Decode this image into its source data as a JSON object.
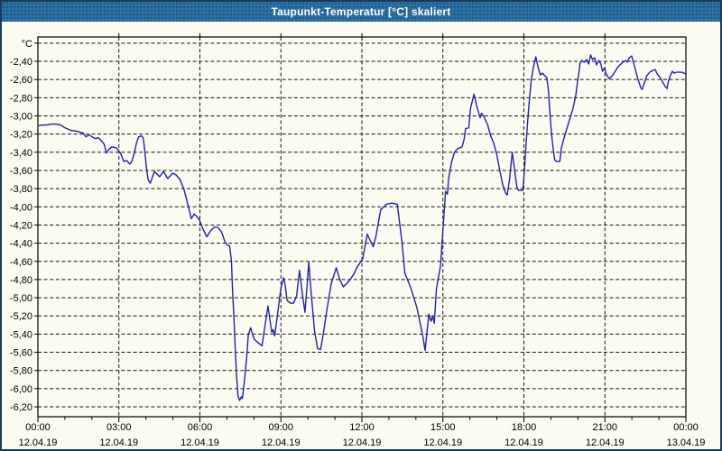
{
  "window": {
    "title": "Taupunkt-Temperatur [°C] skaliert"
  },
  "colors": {
    "titlebar_bg": "#2C70A4",
    "titlebar_text": "#FFFFFF",
    "page_bg": "#FBFBF1",
    "window_border": "#1A3A5C",
    "grid": "#161616",
    "series_line": "#2222B0"
  },
  "chart_data": {
    "type": "line",
    "title": "Taupunkt-Temperatur [°C] skaliert",
    "series_name": "Taupunkt-Temperatur skaliert",
    "grid": "dashed",
    "legend": "none",
    "line_color": "#2222B0",
    "y_axis": {
      "unit": "°C",
      "tick_step": 0.2,
      "top_value": -2.2,
      "bottom_value": -6.2,
      "ticks": [
        {
          "v": -2.2,
          "label": ""
        },
        {
          "v": -2.4,
          "label": "-2,40"
        },
        {
          "v": -2.6,
          "label": "-2,60"
        },
        {
          "v": -2.8,
          "label": "-2,80"
        },
        {
          "v": -3.0,
          "label": "-3,00"
        },
        {
          "v": -3.2,
          "label": "-3,20"
        },
        {
          "v": -3.4,
          "label": "-3,40"
        },
        {
          "v": -3.6,
          "label": "-3,60"
        },
        {
          "v": -3.8,
          "label": "-3,80"
        },
        {
          "v": -4.0,
          "label": "-4,00"
        },
        {
          "v": -4.2,
          "label": "-4,20"
        },
        {
          "v": -4.4,
          "label": "-4,40"
        },
        {
          "v": -4.6,
          "label": "-4,60"
        },
        {
          "v": -4.8,
          "label": "-4,80"
        },
        {
          "v": -5.0,
          "label": "-5,00"
        },
        {
          "v": -5.2,
          "label": "-5,20"
        },
        {
          "v": -5.4,
          "label": "-5,40"
        },
        {
          "v": -5.6,
          "label": "-5,60"
        },
        {
          "v": -5.8,
          "label": "-5,80"
        },
        {
          "v": -6.0,
          "label": "-6,00"
        },
        {
          "v": -6.2,
          "label": "-6,20"
        }
      ]
    },
    "x_axis": {
      "minor_tick_every_h": 1,
      "gridline_hours": [
        3,
        6,
        9,
        12,
        15,
        18,
        21
      ],
      "ticks": [
        {
          "h": 0,
          "time": "00:00",
          "date": "12.04.19"
        },
        {
          "h": 3,
          "time": "03:00",
          "date": "12.04.19"
        },
        {
          "h": 6,
          "time": "06:00",
          "date": "12.04.19"
        },
        {
          "h": 9,
          "time": "09:00",
          "date": "12.04.19"
        },
        {
          "h": 12,
          "time": "12:00",
          "date": "12.04.19"
        },
        {
          "h": 15,
          "time": "15:00",
          "date": "12.04.19"
        },
        {
          "h": 18,
          "time": "18:00",
          "date": "12.04.19"
        },
        {
          "h": 21,
          "time": "21:00",
          "date": "12.04.19"
        },
        {
          "h": 24,
          "time": "00:00",
          "date": "13.04.19"
        }
      ]
    },
    "points": [
      [
        0.0,
        -3.11
      ],
      [
        0.17,
        -3.1
      ],
      [
        0.33,
        -3.1
      ],
      [
        0.5,
        -3.09
      ],
      [
        0.67,
        -3.09
      ],
      [
        0.84,
        -3.1
      ],
      [
        1.0,
        -3.13
      ],
      [
        1.23,
        -3.16
      ],
      [
        1.45,
        -3.17
      ],
      [
        1.67,
        -3.19
      ],
      [
        1.78,
        -3.23
      ],
      [
        1.89,
        -3.21
      ],
      [
        2.01,
        -3.23
      ],
      [
        2.12,
        -3.25
      ],
      [
        2.23,
        -3.24
      ],
      [
        2.34,
        -3.27
      ],
      [
        2.45,
        -3.31
      ],
      [
        2.54,
        -3.41
      ],
      [
        2.62,
        -3.37
      ],
      [
        2.73,
        -3.34
      ],
      [
        2.9,
        -3.35
      ],
      [
        3.06,
        -3.41
      ],
      [
        3.18,
        -3.5
      ],
      [
        3.29,
        -3.49
      ],
      [
        3.4,
        -3.53
      ],
      [
        3.48,
        -3.5
      ],
      [
        3.57,
        -3.41
      ],
      [
        3.65,
        -3.3
      ],
      [
        3.73,
        -3.23
      ],
      [
        3.84,
        -3.22
      ],
      [
        3.9,
        -3.24
      ],
      [
        3.96,
        -3.39
      ],
      [
        4.01,
        -3.55
      ],
      [
        4.08,
        -3.7
      ],
      [
        4.16,
        -3.74
      ],
      [
        4.32,
        -3.61
      ],
      [
        4.51,
        -3.67
      ],
      [
        4.65,
        -3.61
      ],
      [
        4.81,
        -3.69
      ],
      [
        4.99,
        -3.63
      ],
      [
        5.12,
        -3.65
      ],
      [
        5.26,
        -3.7
      ],
      [
        5.4,
        -3.8
      ],
      [
        5.57,
        -3.99
      ],
      [
        5.68,
        -4.13
      ],
      [
        5.79,
        -4.08
      ],
      [
        5.9,
        -4.11
      ],
      [
        5.99,
        -4.15
      ],
      [
        6.12,
        -4.25
      ],
      [
        6.26,
        -4.33
      ],
      [
        6.4,
        -4.26
      ],
      [
        6.55,
        -4.22
      ],
      [
        6.68,
        -4.23
      ],
      [
        6.81,
        -4.28
      ],
      [
        6.92,
        -4.38
      ],
      [
        7.01,
        -4.42
      ],
      [
        7.1,
        -4.43
      ],
      [
        7.17,
        -4.6
      ],
      [
        7.21,
        -4.93
      ],
      [
        7.26,
        -5.21
      ],
      [
        7.3,
        -5.5
      ],
      [
        7.35,
        -5.82
      ],
      [
        7.41,
        -6.08
      ],
      [
        7.47,
        -6.13
      ],
      [
        7.53,
        -6.09
      ],
      [
        7.57,
        -6.11
      ],
      [
        7.62,
        -5.99
      ],
      [
        7.67,
        -5.85
      ],
      [
        7.73,
        -5.66
      ],
      [
        7.79,
        -5.41
      ],
      [
        7.88,
        -5.33
      ],
      [
        7.96,
        -5.41
      ],
      [
        8.02,
        -5.46
      ],
      [
        8.3,
        -5.53
      ],
      [
        8.52,
        -5.09
      ],
      [
        8.66,
        -5.38
      ],
      [
        8.71,
        -5.35
      ],
      [
        8.77,
        -5.42
      ],
      [
        8.91,
        -5.1
      ],
      [
        9.0,
        -4.89
      ],
      [
        9.1,
        -4.78
      ],
      [
        9.16,
        -4.86
      ],
      [
        9.23,
        -5.03
      ],
      [
        9.35,
        -5.06
      ],
      [
        9.47,
        -5.06
      ],
      [
        9.58,
        -4.98
      ],
      [
        9.69,
        -4.7
      ],
      [
        9.79,
        -4.95
      ],
      [
        9.89,
        -5.16
      ],
      [
        9.96,
        -4.9
      ],
      [
        10.03,
        -4.61
      ],
      [
        10.12,
        -4.95
      ],
      [
        10.25,
        -5.37
      ],
      [
        10.36,
        -5.56
      ],
      [
        10.47,
        -5.57
      ],
      [
        10.58,
        -5.38
      ],
      [
        10.7,
        -5.14
      ],
      [
        10.86,
        -4.85
      ],
      [
        11.05,
        -4.67
      ],
      [
        11.18,
        -4.8
      ],
      [
        11.31,
        -4.88
      ],
      [
        11.45,
        -4.84
      ],
      [
        11.59,
        -4.79
      ],
      [
        11.7,
        -4.74
      ],
      [
        11.81,
        -4.67
      ],
      [
        11.9,
        -4.63
      ],
      [
        12.03,
        -4.57
      ],
      [
        12.2,
        -4.3
      ],
      [
        12.32,
        -4.38
      ],
      [
        12.42,
        -4.44
      ],
      [
        12.52,
        -4.32
      ],
      [
        12.7,
        -4.03
      ],
      [
        12.92,
        -3.97
      ],
      [
        13.1,
        -3.96
      ],
      [
        13.31,
        -3.97
      ],
      [
        13.48,
        -4.38
      ],
      [
        13.59,
        -4.73
      ],
      [
        13.81,
        -4.89
      ],
      [
        14.04,
        -5.11
      ],
      [
        14.26,
        -5.43
      ],
      [
        14.34,
        -5.58
      ],
      [
        14.48,
        -5.18
      ],
      [
        14.56,
        -5.26
      ],
      [
        14.62,
        -5.2
      ],
      [
        14.68,
        -5.28
      ],
      [
        14.76,
        -4.9
      ],
      [
        14.91,
        -4.65
      ],
      [
        15.0,
        -4.25
      ],
      [
        15.1,
        -3.83
      ],
      [
        15.17,
        -3.86
      ],
      [
        15.21,
        -3.7
      ],
      [
        15.32,
        -3.51
      ],
      [
        15.43,
        -3.4
      ],
      [
        15.54,
        -3.36
      ],
      [
        15.71,
        -3.34
      ],
      [
        15.79,
        -3.25
      ],
      [
        15.84,
        -3.14
      ],
      [
        15.96,
        -3.13
      ],
      [
        16.02,
        -2.92
      ],
      [
        16.15,
        -2.76
      ],
      [
        16.27,
        -2.91
      ],
      [
        16.38,
        -3.02
      ],
      [
        16.43,
        -2.97
      ],
      [
        16.51,
        -3.0
      ],
      [
        16.66,
        -3.1
      ],
      [
        16.77,
        -3.22
      ],
      [
        16.88,
        -3.3
      ],
      [
        16.99,
        -3.42
      ],
      [
        17.1,
        -3.59
      ],
      [
        17.21,
        -3.75
      ],
      [
        17.32,
        -3.85
      ],
      [
        17.38,
        -3.87
      ],
      [
        17.47,
        -3.7
      ],
      [
        17.57,
        -3.4
      ],
      [
        17.66,
        -3.6
      ],
      [
        17.74,
        -3.78
      ],
      [
        17.8,
        -3.82
      ],
      [
        17.96,
        -3.82
      ],
      [
        18.02,
        -3.6
      ],
      [
        18.06,
        -3.4
      ],
      [
        18.11,
        -3.18
      ],
      [
        18.18,
        -2.9
      ],
      [
        18.27,
        -2.61
      ],
      [
        18.36,
        -2.45
      ],
      [
        18.44,
        -2.35
      ],
      [
        18.52,
        -2.46
      ],
      [
        18.61,
        -2.55
      ],
      [
        18.69,
        -2.53
      ],
      [
        18.78,
        -2.56
      ],
      [
        18.85,
        -2.58
      ],
      [
        18.91,
        -2.72
      ],
      [
        18.96,
        -2.95
      ],
      [
        19.02,
        -3.19
      ],
      [
        19.08,
        -3.35
      ],
      [
        19.14,
        -3.48
      ],
      [
        19.19,
        -3.5
      ],
      [
        19.33,
        -3.5
      ],
      [
        19.39,
        -3.35
      ],
      [
        19.48,
        -3.25
      ],
      [
        19.59,
        -3.14
      ],
      [
        19.7,
        -3.03
      ],
      [
        19.81,
        -2.93
      ],
      [
        19.92,
        -2.78
      ],
      [
        19.99,
        -2.62
      ],
      [
        20.05,
        -2.5
      ],
      [
        20.08,
        -2.42
      ],
      [
        20.15,
        -2.39
      ],
      [
        20.23,
        -2.41
      ],
      [
        20.32,
        -2.38
      ],
      [
        20.4,
        -2.43
      ],
      [
        20.47,
        -2.33
      ],
      [
        20.54,
        -2.38
      ],
      [
        20.62,
        -2.36
      ],
      [
        20.69,
        -2.44
      ],
      [
        20.77,
        -2.39
      ],
      [
        20.85,
        -2.43
      ],
      [
        20.91,
        -2.51
      ],
      [
        20.99,
        -2.47
      ],
      [
        21.05,
        -2.54
      ],
      [
        21.16,
        -2.59
      ],
      [
        21.27,
        -2.56
      ],
      [
        21.36,
        -2.52
      ],
      [
        21.49,
        -2.46
      ],
      [
        21.66,
        -2.41
      ],
      [
        21.77,
        -2.39
      ],
      [
        21.83,
        -2.41
      ],
      [
        21.9,
        -2.36
      ],
      [
        21.99,
        -2.34
      ],
      [
        22.1,
        -2.46
      ],
      [
        22.22,
        -2.59
      ],
      [
        22.33,
        -2.69
      ],
      [
        22.38,
        -2.71
      ],
      [
        22.46,
        -2.64
      ],
      [
        22.55,
        -2.56
      ],
      [
        22.66,
        -2.52
      ],
      [
        22.77,
        -2.5
      ],
      [
        22.86,
        -2.49
      ],
      [
        22.94,
        -2.54
      ],
      [
        23.05,
        -2.58
      ],
      [
        23.16,
        -2.64
      ],
      [
        23.24,
        -2.68
      ],
      [
        23.3,
        -2.7
      ],
      [
        23.35,
        -2.62
      ],
      [
        23.42,
        -2.56
      ],
      [
        23.5,
        -2.51
      ],
      [
        23.57,
        -2.53
      ],
      [
        23.66,
        -2.52
      ],
      [
        23.77,
        -2.52
      ],
      [
        23.86,
        -2.52
      ],
      [
        24.0,
        -2.54
      ]
    ]
  }
}
